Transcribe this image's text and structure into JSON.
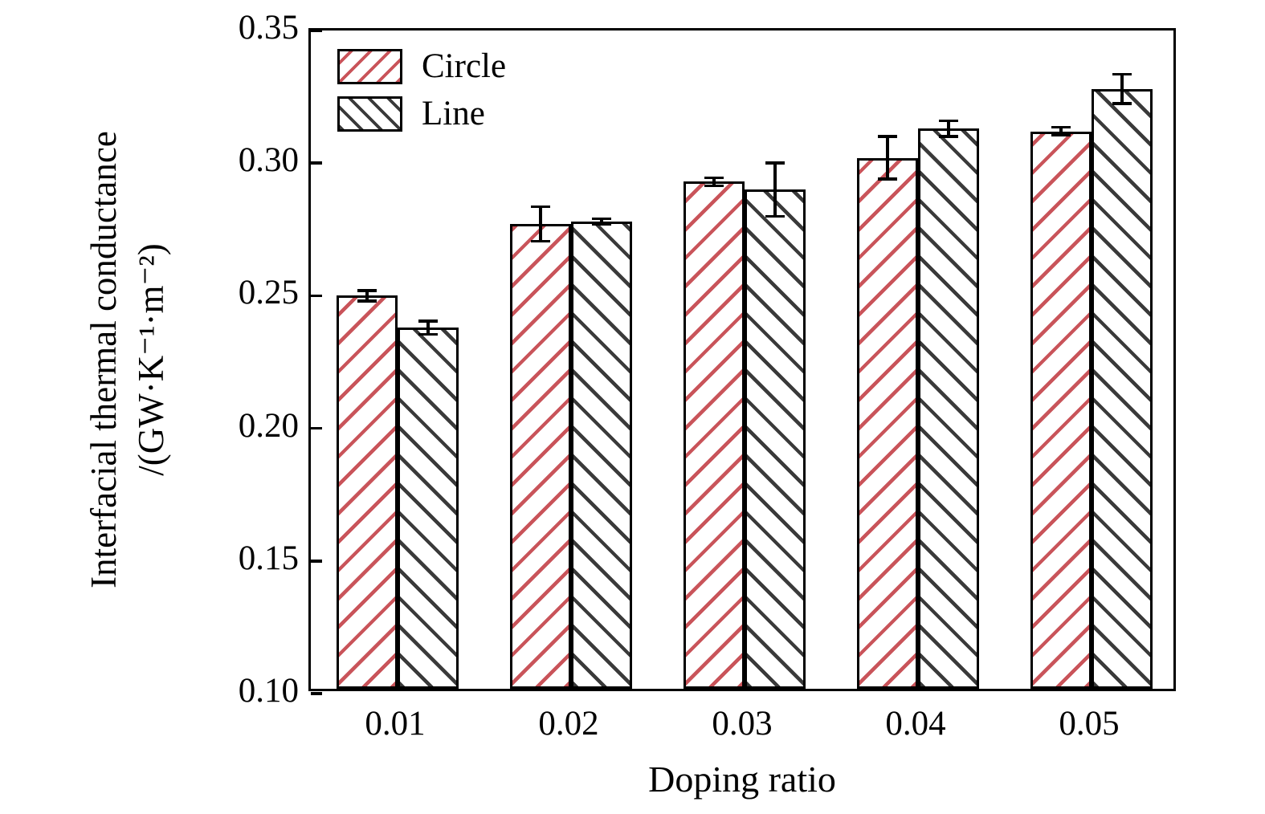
{
  "chart_data": {
    "type": "bar",
    "title": "",
    "xlabel": "Doping ratio",
    "ylabel": "Interfacial thermal conductance /(GW·K⁻¹·m⁻²)",
    "ylabel_lines": [
      "Interfacial thermal conductance",
      "/(GW·K⁻¹·m⁻²)"
    ],
    "categories": [
      "0.01",
      "0.02",
      "0.03",
      "0.04",
      "0.05"
    ],
    "series": [
      {
        "name": "Circle",
        "hatch": "/",
        "color": "#c9545a",
        "values": [
          0.25,
          0.277,
          0.293,
          0.302,
          0.312
        ],
        "errors": [
          0.002,
          0.0065,
          0.0015,
          0.008,
          0.0015
        ]
      },
      {
        "name": "Line",
        "hatch": "\\",
        "color": "#3a3a3a",
        "values": [
          0.238,
          0.278,
          0.29,
          0.313,
          0.328
        ],
        "errors": [
          0.0025,
          0.001,
          0.01,
          0.003,
          0.0055
        ]
      }
    ],
    "ylim": [
      0.1,
      0.35
    ],
    "yticks": [
      "0.10",
      "0.15",
      "0.20",
      "0.25",
      "0.30",
      "0.35"
    ],
    "grid": false,
    "legend_position": "upper left",
    "bar_edge_color": "#000000",
    "error_bar_color": "#000000",
    "background": "#ffffff"
  }
}
